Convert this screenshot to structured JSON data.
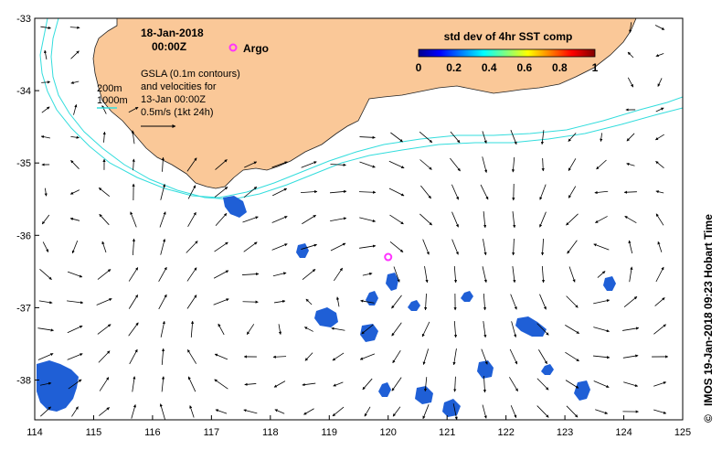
{
  "title": {
    "date": "18-Jan-2018",
    "time": "00:00Z"
  },
  "argo": {
    "label": "Argo",
    "color": "#ff33ff",
    "lon": 120.0,
    "lat": -36.3
  },
  "bathymetry": {
    "depth_200": "200m",
    "depth_1000": "1000m",
    "color": "#33dddd"
  },
  "gsla": {
    "line1": "GSLA (0.1m contours)",
    "line2": "and velocities for",
    "line3": "13-Jan 00:00Z",
    "line4": "0.5m/s (1kt 24h)"
  },
  "colorbar": {
    "title": "std dev of 4hr SST comp",
    "ticks": [
      "0",
      "0.2",
      "0.4",
      "0.6",
      "0.8",
      "1"
    ]
  },
  "credit": "IMOS 19-Jan-2018 09:23 Hobart Time",
  "copyright_symbol": "©",
  "axes": {
    "x_ticks": [
      "114",
      "115",
      "116",
      "117",
      "118",
      "119",
      "120",
      "121",
      "122",
      "123",
      "124",
      "125"
    ],
    "y_ticks": [
      "-33",
      "-34",
      "-35",
      "-36",
      "-37",
      "-38"
    ],
    "x_range": [
      114,
      125
    ],
    "y_range": [
      -38.55,
      -33
    ]
  },
  "colors": {
    "land": "#fac898",
    "ocean": "#ffffff",
    "sst_patch": "#1f5fd6"
  }
}
